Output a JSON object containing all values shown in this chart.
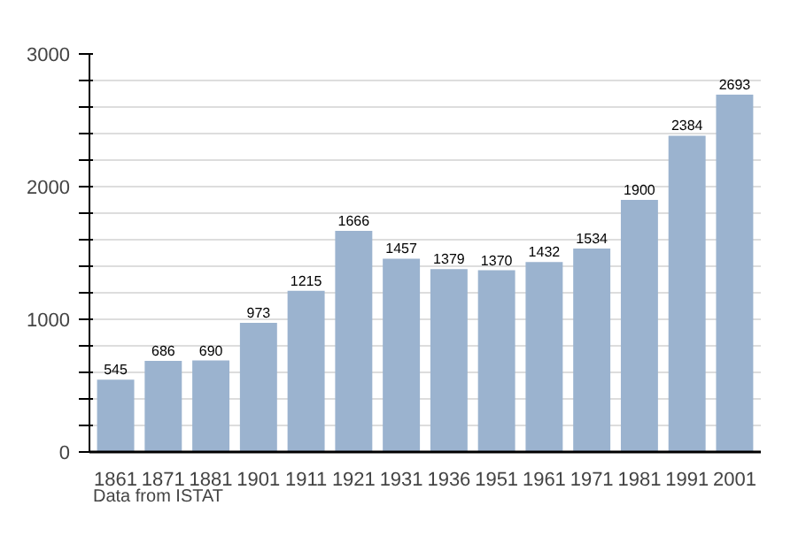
{
  "chart_data": {
    "type": "bar",
    "categories": [
      "1861",
      "1871",
      "1881",
      "1901",
      "1911",
      "1921",
      "1931",
      "1936",
      "1951",
      "1961",
      "1971",
      "1981",
      "1991",
      "2001"
    ],
    "values": [
      545,
      686,
      690,
      973,
      1215,
      1666,
      1457,
      1379,
      1370,
      1432,
      1534,
      1900,
      2384,
      2693
    ],
    "color": "#9bb3cf",
    "ylim": [
      0,
      3000
    ],
    "yticks": [
      0,
      {
        "value": 200,
        "label": null
      },
      {
        "value": 400,
        "label": null
      },
      {
        "value": 600,
        "label": null
      },
      {
        "value": 800,
        "label": null
      },
      1000,
      {
        "value": 1200,
        "label": null
      },
      {
        "value": 1400,
        "label": null
      },
      {
        "value": 1600,
        "label": null
      },
      {
        "value": 1800,
        "label": null
      },
      2000,
      {
        "value": 2200,
        "label": null
      },
      {
        "value": 2400,
        "label": null
      },
      {
        "value": 2600,
        "label": null
      },
      {
        "value": 2800,
        "label": null
      },
      3000
    ],
    "grid": "y",
    "data_labels": true,
    "annotations": [
      "Data from ISTAT"
    ]
  }
}
